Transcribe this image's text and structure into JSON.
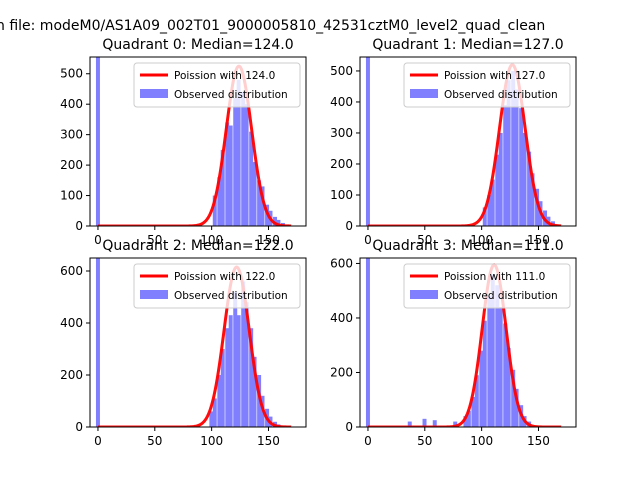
{
  "figure": {
    "suptitle": "n file: modeM0/AS1A09_002T01_9000005810_42531cztM0_level2_quad_clean",
    "colors": {
      "hist": "#8080ff",
      "fit": "#ff0000",
      "axes": "#000000"
    }
  },
  "chart_data": [
    {
      "type": "bar",
      "title": "Quadrant 0: Median=124.0",
      "xlabel": "",
      "ylabel": "",
      "xlim": [
        -7,
        183
      ],
      "ylim": [
        0,
        555
      ],
      "xticks": [
        0,
        50,
        100,
        150
      ],
      "yticks": [
        0,
        100,
        200,
        300,
        400,
        500
      ],
      "legend": {
        "position": "top-right",
        "entries": [
          "Poission with 124.0",
          "Observed distribution"
        ]
      },
      "series": [
        {
          "name": "Observed distribution",
          "kind": "histogram",
          "bin_width": 3.5,
          "bins": [
            [
              -1.75,
              555
            ],
            [
              101,
              100
            ],
            [
              105,
              160
            ],
            [
              108,
              250
            ],
            [
              112,
              340
            ],
            [
              115,
              330
            ],
            [
              119,
              420
            ],
            [
              122,
              480
            ],
            [
              126,
              440
            ],
            [
              129,
              400
            ],
            [
              133,
              310
            ],
            [
              136,
              210
            ],
            [
              140,
              150
            ],
            [
              143,
              130
            ],
            [
              147,
              70
            ],
            [
              150,
              50
            ],
            [
              154,
              30
            ],
            [
              157,
              20
            ],
            [
              161,
              10
            ]
          ]
        },
        {
          "name": "Poission with 124.0",
          "kind": "curve",
          "mean": 124.0,
          "peak": 525,
          "x_range": [
            0,
            170
          ]
        }
      ]
    },
    {
      "type": "bar",
      "title": "Quadrant 1: Median=127.0",
      "xlabel": "",
      "ylabel": "",
      "xlim": [
        -7,
        183
      ],
      "ylim": [
        0,
        545
      ],
      "xticks": [
        0,
        50,
        100,
        150
      ],
      "yticks": [
        0,
        100,
        200,
        300,
        400,
        500
      ],
      "legend": {
        "position": "top-right",
        "entries": [
          "Poission with 127.0",
          "Observed distribution"
        ]
      },
      "series": [
        {
          "name": "Observed distribution",
          "kind": "histogram",
          "bin_width": 3.5,
          "bins": [
            [
              -1.75,
              545
            ],
            [
              101,
              60
            ],
            [
              105,
              100
            ],
            [
              108,
              150
            ],
            [
              112,
              230
            ],
            [
              115,
              300
            ],
            [
              119,
              390
            ],
            [
              122,
              470
            ],
            [
              126,
              500
            ],
            [
              129,
              440
            ],
            [
              133,
              380
            ],
            [
              136,
              300
            ],
            [
              140,
              240
            ],
            [
              143,
              170
            ],
            [
              147,
              120
            ],
            [
              150,
              80
            ],
            [
              154,
              50
            ],
            [
              157,
              30
            ],
            [
              161,
              15
            ]
          ]
        },
        {
          "name": "Poission with 127.0",
          "kind": "curve",
          "mean": 127.0,
          "peak": 520,
          "x_range": [
            0,
            170
          ]
        }
      ]
    },
    {
      "type": "bar",
      "title": "Quadrant 2: Median=122.0",
      "xlabel": "",
      "ylabel": "",
      "xlim": [
        -7,
        183
      ],
      "ylim": [
        0,
        650
      ],
      "xticks": [
        0,
        50,
        100,
        150
      ],
      "yticks": [
        0,
        200,
        400,
        600
      ],
      "legend": {
        "position": "top-right",
        "entries": [
          "Poission with 122.0",
          "Observed distribution"
        ]
      },
      "series": [
        {
          "name": "Observed distribution",
          "kind": "histogram",
          "bin_width": 3.5,
          "bins": [
            [
              -1.75,
              650
            ],
            [
              98,
              60
            ],
            [
              101,
              110
            ],
            [
              105,
              200
            ],
            [
              108,
              300
            ],
            [
              112,
              380
            ],
            [
              115,
              430
            ],
            [
              119,
              520
            ],
            [
              122,
              430
            ],
            [
              126,
              560
            ],
            [
              129,
              480
            ],
            [
              133,
              380
            ],
            [
              136,
              270
            ],
            [
              140,
              200
            ],
            [
              143,
              120
            ],
            [
              147,
              70
            ],
            [
              150,
              40
            ],
            [
              154,
              20
            ],
            [
              157,
              10
            ]
          ]
        },
        {
          "name": "Poission with 122.0",
          "kind": "curve",
          "mean": 122.0,
          "peak": 615,
          "x_range": [
            0,
            170
          ]
        }
      ]
    },
    {
      "type": "bar",
      "title": "Quadrant 3: Median=111.0",
      "xlabel": "",
      "ylabel": "",
      "xlim": [
        -7,
        183
      ],
      "ylim": [
        0,
        620
      ],
      "xticks": [
        0,
        50,
        100,
        150
      ],
      "yticks": [
        0,
        200,
        400,
        600
      ],
      "legend": {
        "position": "top-right",
        "entries": [
          "Poission with 111.0",
          "Observed distribution"
        ]
      },
      "series": [
        {
          "name": "Observed distribution",
          "kind": "histogram",
          "bin_width": 3.5,
          "bins": [
            [
              -1.75,
              620
            ],
            [
              35,
              20
            ],
            [
              48,
              30
            ],
            [
              57,
              25
            ],
            [
              75,
              20
            ],
            [
              84,
              40
            ],
            [
              87,
              60
            ],
            [
              91,
              110
            ],
            [
              94,
              190
            ],
            [
              98,
              280
            ],
            [
              101,
              390
            ],
            [
              105,
              480
            ],
            [
              108,
              560
            ],
            [
              112,
              520
            ],
            [
              115,
              440
            ],
            [
              119,
              380
            ],
            [
              122,
              290
            ],
            [
              126,
              210
            ],
            [
              129,
              140
            ],
            [
              133,
              80
            ],
            [
              136,
              40
            ],
            [
              140,
              20
            ]
          ]
        },
        {
          "name": "Poission with 111.0",
          "kind": "curve",
          "mean": 111.0,
          "peak": 595,
          "x_range": [
            0,
            170
          ]
        }
      ]
    }
  ]
}
